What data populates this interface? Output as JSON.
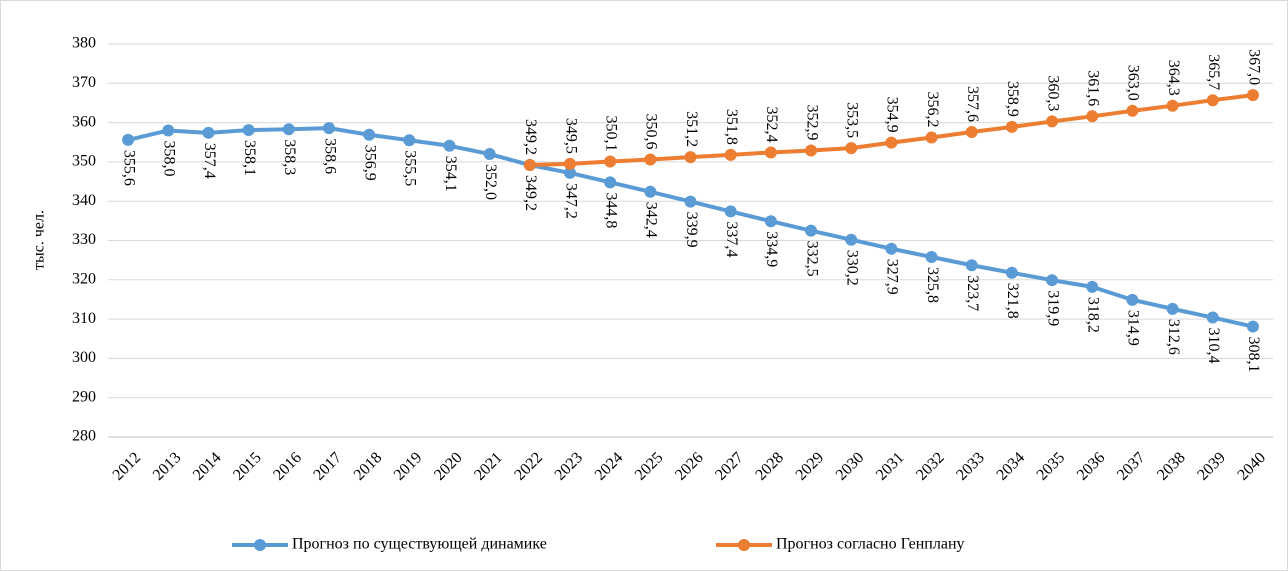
{
  "chart_data": {
    "type": "line",
    "y_label": "тыс. чел.",
    "categories": [
      "2012",
      "2013",
      "2014",
      "2015",
      "2016",
      "2017",
      "2018",
      "2019",
      "2020",
      "2021",
      "2022",
      "2023",
      "2024",
      "2025",
      "2026",
      "2027",
      "2028",
      "2029",
      "2030",
      "2031",
      "2032",
      "2033",
      "2034",
      "2035",
      "2036",
      "2037",
      "2038",
      "2039",
      "2040"
    ],
    "series": [
      {
        "name": "Прогноз по существующей динамике",
        "color": "#5b9bd5",
        "values": [
          355.6,
          358.0,
          357.4,
          358.1,
          358.3,
          358.6,
          356.9,
          355.5,
          354.1,
          352.0,
          349.2,
          347.2,
          344.8,
          342.4,
          339.9,
          337.4,
          334.9,
          332.5,
          330.2,
          327.9,
          325.8,
          323.7,
          321.8,
          319.9,
          318.2,
          314.9,
          312.6,
          310.4,
          308.1
        ],
        "value_labels": [
          "355,6",
          "358,0",
          "357,4",
          "358,1",
          "358,3",
          "358,6",
          "356,9",
          "355,5",
          "354,1",
          "352,0",
          "349,2",
          "347,2",
          "344,8",
          "342,4",
          "339,9",
          "337,4",
          "334,9",
          "332,5",
          "330,2",
          "327,9",
          "325,8",
          "323,7",
          "321,8",
          "319,9",
          "318,2",
          "314,9",
          "312,6",
          "310,4",
          "308,1"
        ]
      },
      {
        "name": "Прогноз согласно Генплану",
        "color": "#ed7d31",
        "values": [
          null,
          null,
          null,
          null,
          null,
          null,
          null,
          null,
          null,
          null,
          349.2,
          349.5,
          350.1,
          350.6,
          351.2,
          351.8,
          352.4,
          352.9,
          353.5,
          354.9,
          356.2,
          357.6,
          358.9,
          360.3,
          361.6,
          363.0,
          364.3,
          365.7,
          367.0
        ],
        "value_labels": [
          null,
          null,
          null,
          null,
          null,
          null,
          null,
          null,
          null,
          null,
          "349,2",
          "349,5",
          "350,1",
          "350,6",
          "351,2",
          "351,8",
          "352,4",
          "352,9",
          "353,5",
          "354,9",
          "356,2",
          "357,6",
          "358,9",
          "360,3",
          "361,6",
          "363,0",
          "364,3",
          "365,7",
          "367,0"
        ]
      }
    ],
    "ylim": [
      280,
      380
    ],
    "yticks": [
      280,
      290,
      300,
      310,
      320,
      330,
      340,
      350,
      360,
      370,
      380
    ],
    "grid": true,
    "legend": "bottom"
  }
}
